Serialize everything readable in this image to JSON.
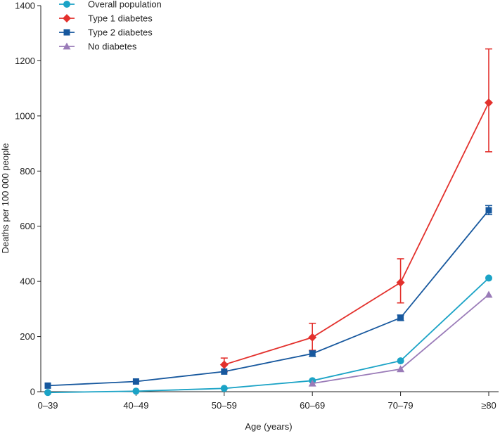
{
  "chart_data": {
    "type": "line",
    "title": "",
    "xlabel": "Age (years)",
    "ylabel": "Deaths per 100 000 people",
    "categories": [
      "0–39",
      "40–49",
      "50–59",
      "60–69",
      "70–79",
      "≥80"
    ],
    "ylim": [
      0,
      1400
    ],
    "yticks": [
      "0",
      "200",
      "400",
      "600",
      "800",
      "1000",
      "1200",
      "1400"
    ],
    "grid": false,
    "legend_position": "top-left",
    "series": [
      {
        "name": "Overall population",
        "color": "#1ba3c6",
        "marker": "circle",
        "values": [
          -3,
          2,
          12,
          40,
          112,
          412
        ],
        "errors": [
          null,
          null,
          null,
          null,
          null,
          null
        ]
      },
      {
        "name": "Type 1 diabetes",
        "color": "#e3312d",
        "marker": "diamond",
        "values": [
          null,
          null,
          98,
          197,
          396,
          1048
        ],
        "errors": [
          null,
          null,
          [
            72,
            122
          ],
          [
            150,
            248
          ],
          [
            322,
            482
          ],
          [
            870,
            1243
          ]
        ]
      },
      {
        "name": "Type 2 diabetes",
        "color": "#17589e",
        "marker": "square",
        "values": [
          22,
          37,
          73,
          138,
          268,
          658
        ],
        "errors": [
          null,
          null,
          null,
          [
            128,
            148
          ],
          [
            258,
            278
          ],
          [
            642,
            675
          ]
        ]
      },
      {
        "name": "No diabetes",
        "color": "#9a7bb8",
        "marker": "triangle",
        "values": [
          null,
          null,
          null,
          30,
          82,
          352
        ],
        "errors": [
          null,
          null,
          null,
          null,
          null,
          null
        ]
      }
    ]
  }
}
